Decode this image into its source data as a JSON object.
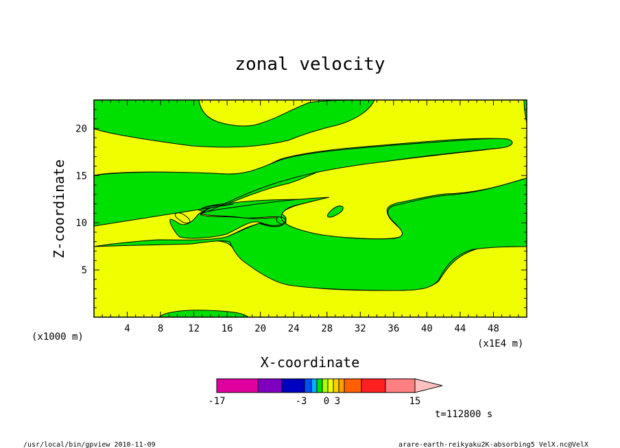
{
  "chart_data": {
    "type": "heatmap",
    "title": "zonal velocity",
    "xlabel": "X-coordinate",
    "ylabel": "Z-coordinate",
    "x_unit_note": "(x1E4 m)",
    "y_unit_note": "(x1000 m)",
    "xlim": [
      0,
      52
    ],
    "ylim": [
      0,
      23
    ],
    "x_ticks": [
      "4",
      "8",
      "12",
      "16",
      "20",
      "24",
      "28",
      "32",
      "36",
      "40",
      "44",
      "48"
    ],
    "x_tick_values": [
      4,
      8,
      12,
      16,
      20,
      24,
      28,
      32,
      36,
      40,
      44,
      48
    ],
    "y_ticks": [
      "5",
      "10",
      "15",
      "20"
    ],
    "y_tick_values": [
      5,
      10,
      15,
      20
    ],
    "contour_levels": [
      -17,
      -15,
      -9,
      -6,
      -3,
      -2,
      -1,
      0,
      1,
      2,
      3,
      6,
      9,
      15
    ],
    "colors": {
      "positive_region": "#f0ff00",
      "negative_region": "#00e000",
      "contour_line": "#000000"
    },
    "colorbar": {
      "colors": [
        "#e000a0",
        "#8000c0",
        "#0000c0",
        "#0050ff",
        "#00b0ff",
        "#00e000",
        "#b0ff00",
        "#f0ff00",
        "#ffd000",
        "#ffa000",
        "#ff6000",
        "#ff2020",
        "#ff8080",
        "#ffc0c0"
      ],
      "labels": [
        "-17",
        "-3",
        "0",
        "3",
        "15"
      ],
      "label_values": [
        -17,
        -3,
        0,
        3,
        15
      ]
    },
    "time_label": "t=112800 s"
  },
  "footer": {
    "left": "/usr/local/bin/gpview  2010-11-09",
    "right": "arare-earth-reikyaku2K-absorbing5_VelX.nc@VelX"
  }
}
